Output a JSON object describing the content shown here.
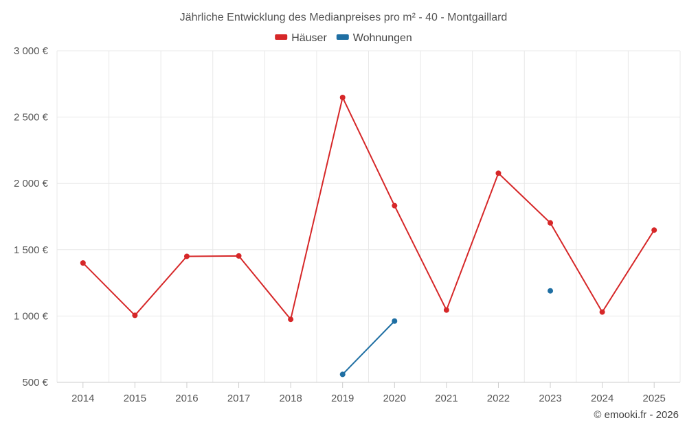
{
  "chart_data": {
    "type": "line",
    "title": "Jährliche Entwicklung des Medianpreises pro m² - 40 - Montgaillard",
    "categories": [
      "2014",
      "2015",
      "2016",
      "2017",
      "2018",
      "2019",
      "2020",
      "2021",
      "2022",
      "2023",
      "2024",
      "2025"
    ],
    "series": [
      {
        "name": "Häuser",
        "color": "#d62728",
        "values": [
          1400,
          1005,
          1450,
          1453,
          975,
          2648,
          1832,
          1045,
          2077,
          1702,
          1030,
          1648
        ]
      },
      {
        "name": "Wohnungen",
        "color": "#1f6fa3",
        "values": [
          null,
          null,
          null,
          null,
          null,
          560,
          962,
          null,
          null,
          1190,
          null,
          null
        ]
      }
    ],
    "ylim": [
      500,
      3000
    ],
    "yticks": [
      500,
      1000,
      1500,
      2000,
      2500,
      3000
    ],
    "ytick_labels": [
      "500 €",
      "1 000 €",
      "1 500 €",
      "2 000 €",
      "2 500 €",
      "3 000 €"
    ],
    "xlabel": "",
    "ylabel": "",
    "grid": true,
    "legend_position": "top-center"
  },
  "credit": "© emooki.fr - 2026"
}
